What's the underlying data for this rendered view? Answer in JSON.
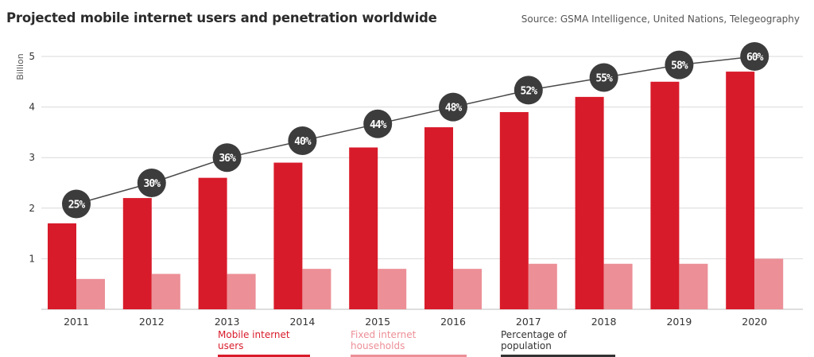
{
  "title": "Projected mobile internet users and penetration worldwide",
  "source": "Source: GSMA Intelligence, United Nations, Telegeography",
  "colors": {
    "mobile": "#d81b2a",
    "fixed": "#ec8f97",
    "population_marker": "#3d3c3c",
    "line": "#4a4a4a",
    "grid": "#d9d9d9",
    "text": "#333333"
  },
  "chart_data": {
    "type": "bar",
    "title": "Projected mobile internet users and penetration worldwide",
    "ylabel": "Billion",
    "ylim": [
      0,
      5
    ],
    "yticks": [
      "1",
      "2",
      "3",
      "4",
      "5"
    ],
    "categories": [
      "2011",
      "2012",
      "2013",
      "2014",
      "2015",
      "2016",
      "2017",
      "2018",
      "2019",
      "2020"
    ],
    "series": [
      {
        "name": "Mobile internet users",
        "values": [
          1.7,
          2.2,
          2.6,
          2.9,
          3.2,
          3.6,
          3.9,
          4.2,
          4.5,
          4.7
        ]
      },
      {
        "name": "Fixed internet households",
        "values": [
          0.6,
          0.7,
          0.7,
          0.8,
          0.8,
          0.8,
          0.9,
          0.9,
          0.9,
          1.0
        ]
      }
    ],
    "line_series": {
      "name": "Percentage of population",
      "values": [
        25,
        30,
        36,
        40,
        44,
        48,
        52,
        55,
        58,
        60
      ],
      "labels": [
        "25%",
        "30%",
        "36%",
        "40%",
        "44%",
        "48%",
        "52%",
        "55%",
        "58%",
        "60%"
      ]
    },
    "grid": true,
    "legend_position": "bottom"
  },
  "legend": {
    "mobile": "Mobile internet users",
    "fixed": "Fixed internet households",
    "population": "Percentage of population"
  }
}
